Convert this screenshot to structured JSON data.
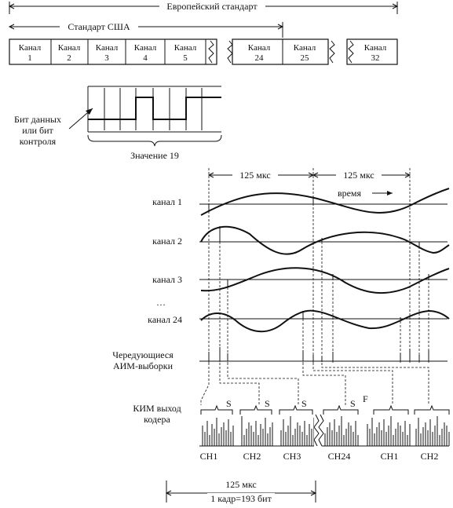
{
  "frame_header": {
    "european_label": "Европейский стандарт",
    "usa_label": "Стандарт США",
    "channels": [
      {
        "word": "Канал",
        "num": "1"
      },
      {
        "word": "Канал",
        "num": "2"
      },
      {
        "word": "Канал",
        "num": "3"
      },
      {
        "word": "Канал",
        "num": "4"
      },
      {
        "word": "Канал",
        "num": "5"
      },
      {
        "word": "Канал",
        "num": "24"
      },
      {
        "word": "Канал",
        "num": "25"
      },
      {
        "word": "Канал",
        "num": "32"
      }
    ]
  },
  "bit_detail": {
    "pointer_label_line1": "Бит данных",
    "pointer_label_line2": "или бит",
    "pointer_label_line3": "контроля",
    "caption": "Значение 19"
  },
  "timing": {
    "period1": "125 мкс",
    "period2": "125 мкс",
    "time_label": "время",
    "channel_labels": [
      "канал 1",
      "канал 2",
      "канал 3",
      "канал 24"
    ],
    "ellipsis": "…",
    "pam_label_line1": "Чередующиеся",
    "pam_label_line2": "АИМ-выборки",
    "pcm_label_line1": "КИМ выход",
    "pcm_label_line2": "кодера",
    "sync_marks": [
      "S",
      "S",
      "S",
      "S"
    ],
    "frame_mark": "F",
    "slot_labels": [
      "CH1",
      "CH2",
      "CH3",
      "CH24",
      "CH1",
      "CH2"
    ],
    "frame_duration": "125 мкс",
    "frame_bits": "1 кадр=193 бит"
  }
}
